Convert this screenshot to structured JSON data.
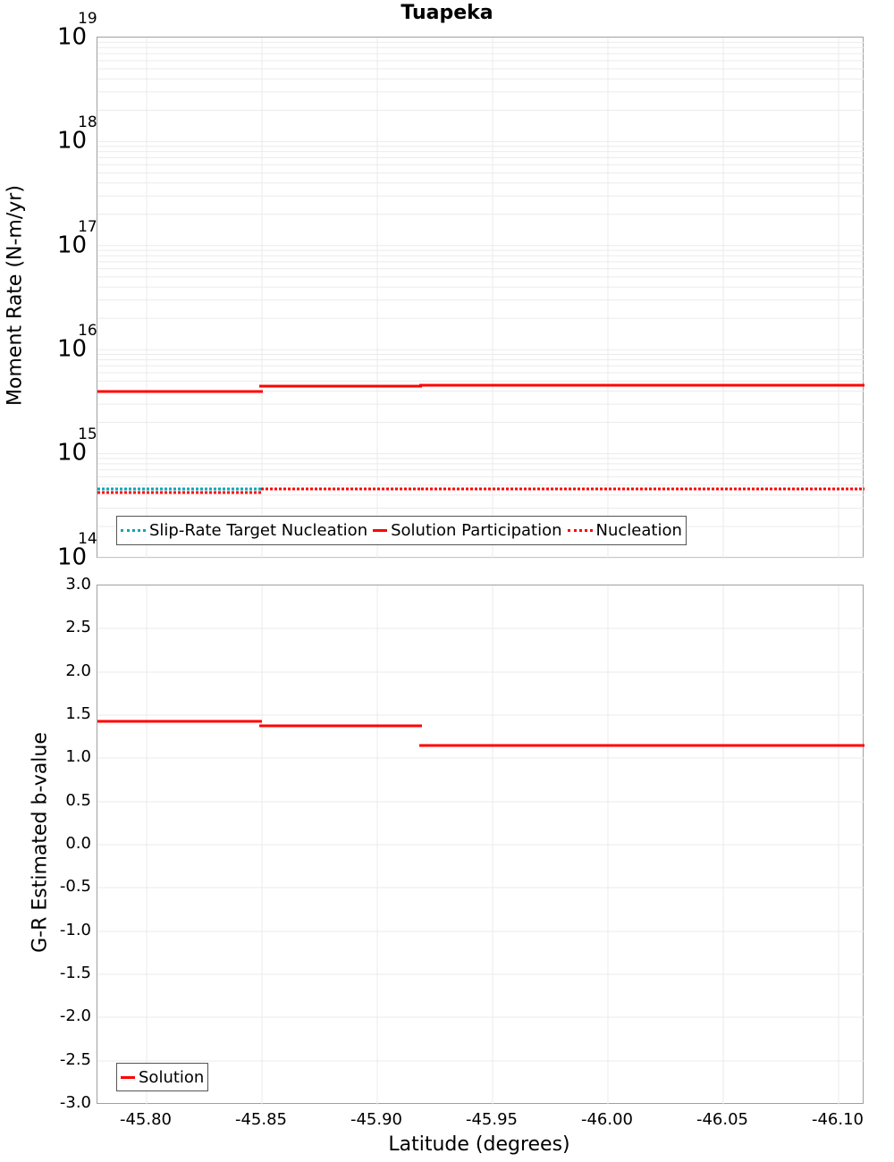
{
  "title": "Tuapeka",
  "top_plot": {
    "ylabel": "Moment Rate (N-m/yr)",
    "yticks": [
      {
        "base": "10",
        "exp": "19"
      },
      {
        "base": "10",
        "exp": "18"
      },
      {
        "base": "10",
        "exp": "17"
      },
      {
        "base": "10",
        "exp": "16"
      },
      {
        "base": "10",
        "exp": "15"
      },
      {
        "base": "10",
        "exp": "14"
      }
    ],
    "legend": [
      {
        "label": "Slip-Rate Target Nucleation",
        "color": "#00a8b8",
        "style": "dotted"
      },
      {
        "label": "Solution Participation",
        "color": "#ff0000",
        "style": "solid"
      },
      {
        "label": "Nucleation",
        "color": "#ff0000",
        "style": "dotted"
      }
    ]
  },
  "bottom_plot": {
    "ylabel": "G-R Estimated b-value",
    "yticks": [
      "3.0",
      "2.5",
      "2.0",
      "1.5",
      "1.0",
      "0.5",
      "0.0",
      "-0.5",
      "-1.0",
      "-1.5",
      "-2.0",
      "-2.5",
      "-3.0"
    ],
    "legend": [
      {
        "label": "Solution",
        "color": "#ff0000",
        "style": "solid"
      }
    ]
  },
  "xaxis": {
    "label": "Latitude (degrees)",
    "ticks": [
      "-45.80",
      "-45.85",
      "-45.90",
      "-45.95",
      "-46.00",
      "-46.05",
      "-46.10"
    ]
  },
  "chart_data": [
    {
      "type": "line",
      "title": "Tuapeka",
      "xlabel": "Latitude (degrees)",
      "ylabel": "Moment Rate (N-m/yr)",
      "yscale": "log",
      "ylim": [
        100000000000000.0,
        1e+19
      ],
      "xlim": [
        -45.779,
        -46.111
      ],
      "grid": true,
      "legend_position": "lower-left",
      "segments_x": [
        [
          -45.779,
          -45.85
        ],
        [
          -45.85,
          -45.919
        ],
        [
          -45.919,
          -46.026
        ],
        [
          -46.026,
          -46.111
        ]
      ],
      "series": [
        {
          "name": "Slip-Rate Target Nucleation",
          "style": "dotted",
          "color": "#00a8b8",
          "values": [
            460000000000000.0,
            460000000000000.0,
            460000000000000.0,
            460000000000000.0
          ]
        },
        {
          "name": "Solution Participation",
          "style": "solid",
          "color": "#ff0000",
          "values": [
            3960000000000000.0,
            4370000000000000.0,
            4550000000000000.0,
            4550000000000000.0
          ]
        },
        {
          "name": "Nucleation",
          "style": "dotted",
          "color": "#ff0000",
          "values": [
            424000000000000.0,
            459000000000000.0,
            459000000000000.0,
            459000000000000.0
          ]
        }
      ]
    },
    {
      "type": "line",
      "xlabel": "Latitude (degrees)",
      "ylabel": "G-R Estimated b-value",
      "ylim": [
        -3.0,
        3.0
      ],
      "xlim": [
        -45.779,
        -46.111
      ],
      "grid": true,
      "legend_position": "lower-left",
      "segments_x": [
        [
          -45.779,
          -45.85
        ],
        [
          -45.85,
          -45.919
        ],
        [
          -45.919,
          -46.026
        ],
        [
          -46.026,
          -46.111
        ]
      ],
      "series": [
        {
          "name": "Solution",
          "style": "solid",
          "color": "#ff0000",
          "values": [
            1.43,
            1.37,
            1.15,
            1.15
          ]
        }
      ]
    }
  ]
}
